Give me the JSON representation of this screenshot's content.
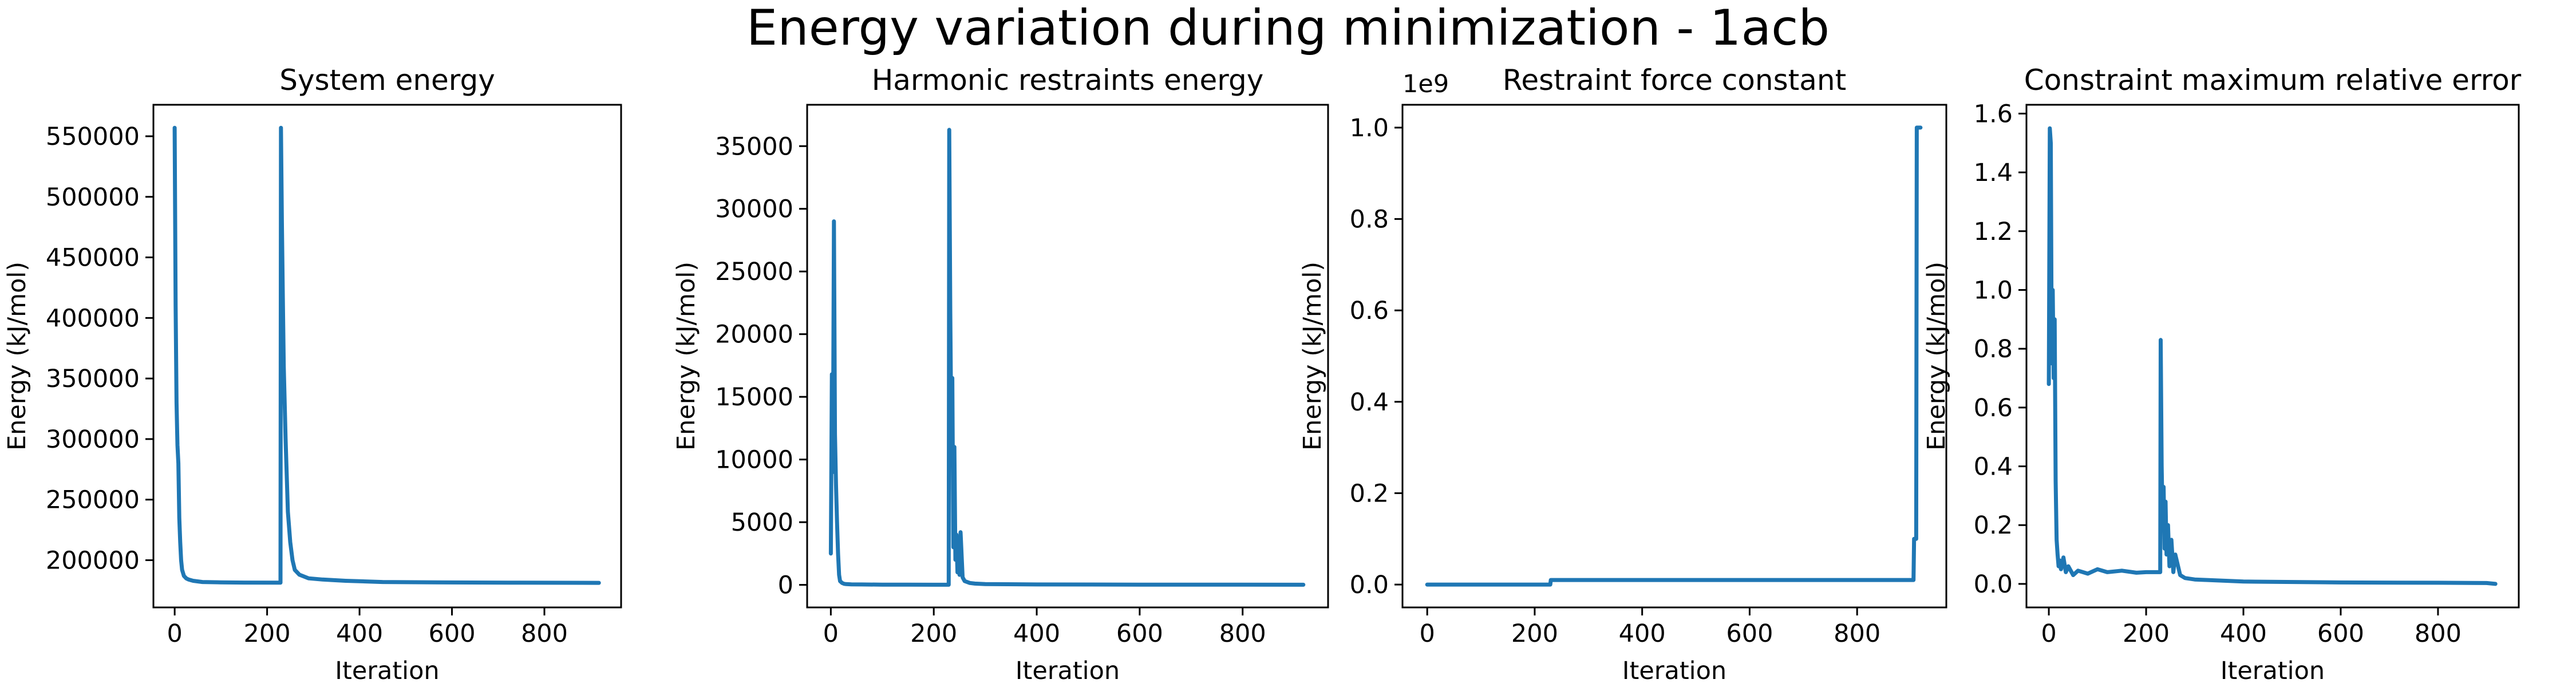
{
  "figure": {
    "suptitle": "Energy variation during minimization - 1acb"
  },
  "colors": {
    "series": "#1f77b4",
    "axis": "#000000",
    "background": "#ffffff"
  },
  "chart_data": [
    {
      "type": "line",
      "title": "System energy",
      "xlabel": "Iteration",
      "ylabel": "Energy (kJ/mol)",
      "xlim": [
        -46,
        966
      ],
      "ylim": [
        161000,
        576000
      ],
      "xticks": [
        0,
        200,
        400,
        600,
        800
      ],
      "xtick_labels": [
        "0",
        "200",
        "400",
        "600",
        "800"
      ],
      "yticks": [
        200000,
        250000,
        300000,
        350000,
        400000,
        450000,
        500000,
        550000
      ],
      "ytick_labels": [
        "200000",
        "250000",
        "300000",
        "350000",
        "400000",
        "450000",
        "500000",
        "550000"
      ],
      "offset_text": "",
      "grid": false,
      "series": [
        {
          "x": [
            0,
            2,
            4,
            6,
            8,
            10,
            12,
            14,
            16,
            20,
            25,
            30,
            40,
            60,
            100,
            150,
            229,
            230,
            232,
            234,
            236,
            240,
            245,
            250,
            255,
            260,
            270,
            290,
            320,
            370,
            450,
            600,
            750,
            918
          ],
          "y": [
            557000,
            410000,
            330000,
            295000,
            280000,
            235000,
            215000,
            200000,
            192000,
            187000,
            185000,
            184000,
            183000,
            182000,
            181700,
            181500,
            181400,
            557000,
            480000,
            420000,
            360000,
            300000,
            240000,
            215000,
            200000,
            192000,
            188000,
            185000,
            184000,
            183000,
            182000,
            181600,
            181400,
            181300
          ]
        }
      ]
    },
    {
      "type": "line",
      "title": "Harmonic restraints energy",
      "xlabel": "Iteration",
      "ylabel": "Energy (kJ/mol)",
      "xlim": [
        -46,
        966
      ],
      "ylim": [
        -1800,
        38300
      ],
      "xticks": [
        0,
        200,
        400,
        600,
        800
      ],
      "xtick_labels": [
        "0",
        "200",
        "400",
        "600",
        "800"
      ],
      "yticks": [
        0,
        5000,
        10000,
        15000,
        20000,
        25000,
        30000,
        35000
      ],
      "ytick_labels": [
        "0",
        "5000",
        "10000",
        "15000",
        "20000",
        "25000",
        "30000",
        "35000"
      ],
      "offset_text": "",
      "grid": false,
      "series": [
        {
          "x": [
            0,
            2,
            4,
            6,
            8,
            10,
            12,
            14,
            16,
            18,
            22,
            26,
            30,
            40,
            60,
            100,
            150,
            200,
            229,
            230,
            232,
            234,
            236,
            238,
            240,
            242,
            244,
            246,
            248,
            250,
            252,
            256,
            260,
            270,
            280,
            300,
            400,
            600,
            800,
            918
          ],
          "y": [
            2500,
            16800,
            9000,
            29000,
            12000,
            8000,
            5000,
            2500,
            800,
            300,
            150,
            80,
            60,
            40,
            30,
            20,
            15,
            10,
            10,
            36300,
            22000,
            12000,
            16500,
            3000,
            11000,
            2000,
            4000,
            1000,
            3500,
            800,
            4200,
            600,
            300,
            150,
            100,
            60,
            30,
            20,
            15,
            10
          ]
        }
      ]
    },
    {
      "type": "line",
      "title": "Restraint force constant",
      "xlabel": "Iteration",
      "ylabel": "Energy (kJ/mol)",
      "xlim": [
        -46,
        966
      ],
      "ylim": [
        -0.05,
        1.05
      ],
      "xticks": [
        0,
        200,
        400,
        600,
        800
      ],
      "xtick_labels": [
        "0",
        "200",
        "400",
        "600",
        "800"
      ],
      "yticks": [
        0.0,
        0.2,
        0.4,
        0.6,
        0.8,
        1.0
      ],
      "ytick_labels": [
        "0.0",
        "0.2",
        "0.4",
        "0.6",
        "0.8",
        "1.0"
      ],
      "offset_text": "1e9",
      "grid": false,
      "series": [
        {
          "x": [
            0,
            229,
            230,
            905,
            906,
            910,
            911,
            918
          ],
          "y": [
            0.0,
            0.0,
            0.01,
            0.01,
            0.1,
            0.1,
            1.0,
            1.0
          ]
        }
      ]
    },
    {
      "type": "line",
      "title": "Constraint maximum relative error",
      "xlabel": "Iteration",
      "ylabel": "Energy (kJ/mol)",
      "xlim": [
        -46,
        966
      ],
      "ylim": [
        -0.08,
        1.63
      ],
      "xticks": [
        0,
        200,
        400,
        600,
        800
      ],
      "xtick_labels": [
        "0",
        "200",
        "400",
        "600",
        "800"
      ],
      "yticks": [
        0.0,
        0.2,
        0.4,
        0.6,
        0.8,
        1.0,
        1.2,
        1.4,
        1.6
      ],
      "ytick_labels": [
        "0.0",
        "0.2",
        "0.4",
        "0.6",
        "0.8",
        "1.0",
        "1.2",
        "1.4",
        "1.6"
      ],
      "offset_text": "",
      "grid": false,
      "series": [
        {
          "x": [
            0,
            2,
            4,
            6,
            8,
            10,
            12,
            14,
            16,
            18,
            20,
            22,
            25,
            30,
            35,
            40,
            50,
            60,
            80,
            100,
            120,
            150,
            180,
            200,
            229,
            230,
            232,
            234,
            236,
            238,
            240,
            242,
            245,
            248,
            252,
            256,
            260,
            270,
            280,
            300,
            400,
            600,
            800,
            900,
            918
          ],
          "y": [
            0.68,
            1.55,
            1.5,
            0.75,
            1.0,
            0.7,
            0.9,
            0.35,
            0.15,
            0.1,
            0.06,
            0.08,
            0.05,
            0.09,
            0.04,
            0.06,
            0.03,
            0.045,
            0.035,
            0.05,
            0.04,
            0.045,
            0.038,
            0.04,
            0.04,
            0.83,
            0.4,
            0.2,
            0.33,
            0.12,
            0.28,
            0.1,
            0.2,
            0.06,
            0.15,
            0.04,
            0.1,
            0.03,
            0.02,
            0.015,
            0.008,
            0.005,
            0.004,
            0.003,
            0.0
          ]
        }
      ]
    }
  ]
}
